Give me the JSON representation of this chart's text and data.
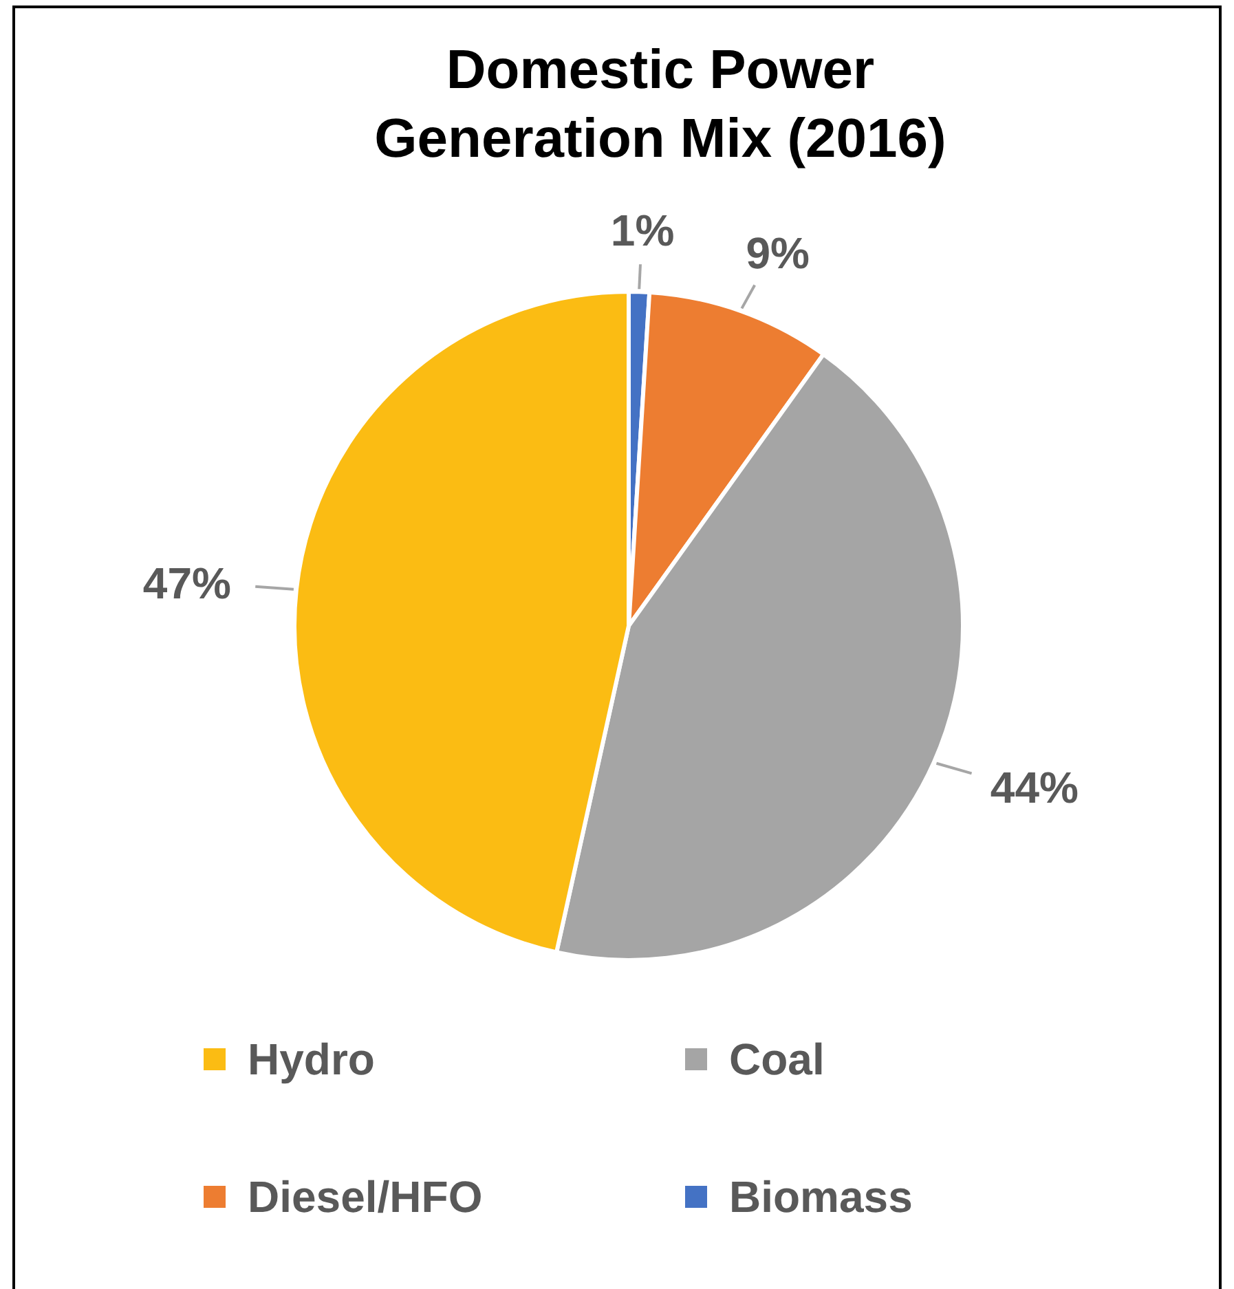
{
  "chart_data": {
    "type": "pie",
    "title": "Domestic Power Generation Mix (2016)",
    "categories": [
      "Hydro",
      "Coal",
      "Diesel/HFO",
      "Biomass"
    ],
    "values": [
      47,
      44,
      9,
      1
    ],
    "value_labels": [
      "47%",
      "44%",
      "9%",
      "1%"
    ],
    "colors": [
      "#fbbc13",
      "#a5a5a5",
      "#ed7d31",
      "#4472c4"
    ],
    "legend": "bottom"
  }
}
